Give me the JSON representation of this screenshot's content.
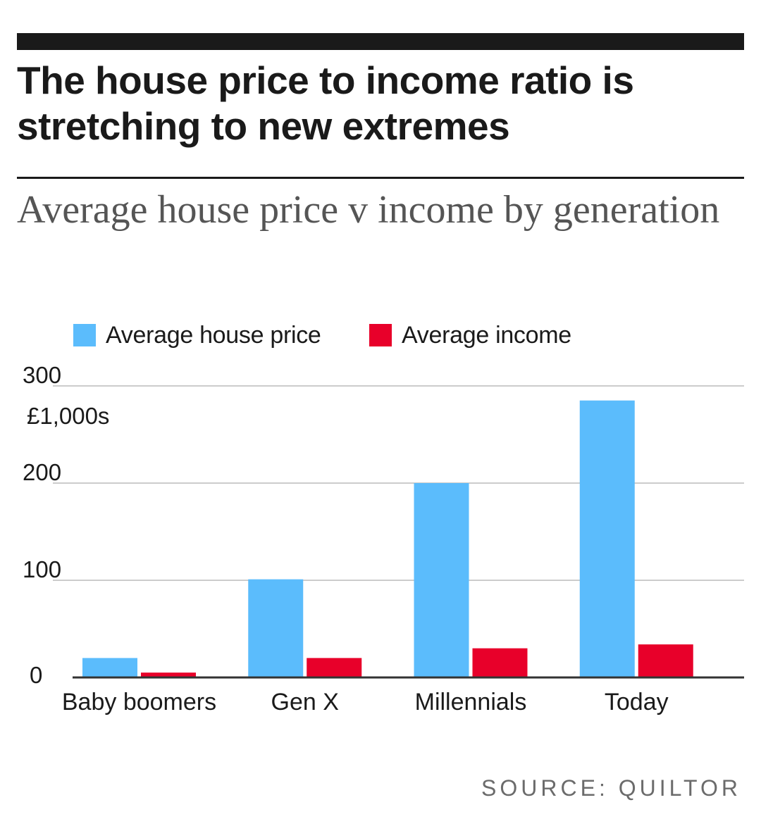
{
  "headline": "The house price to income ratio is stretching to new extremes",
  "subtitle": "Average house price v income by generation",
  "source": "SOURCE: QUILTOR",
  "colors": {
    "house_price": "#5bbcfc",
    "income": "#e8002a",
    "gridline": "#cccccc",
    "axis": "#333333"
  },
  "chart_data": {
    "type": "bar",
    "categories": [
      "Baby boomers",
      "Gen X",
      "Millennials",
      "Today"
    ],
    "series": [
      {
        "name": "Average house price",
        "values": [
          20,
          101,
          200,
          285
        ]
      },
      {
        "name": "Average income",
        "values": [
          5,
          20,
          30,
          34
        ]
      }
    ],
    "yunit": "£1,000s",
    "yticks": [
      0,
      100,
      200,
      300
    ],
    "ylim": [
      0,
      300
    ],
    "grid": true,
    "legend": "top"
  }
}
